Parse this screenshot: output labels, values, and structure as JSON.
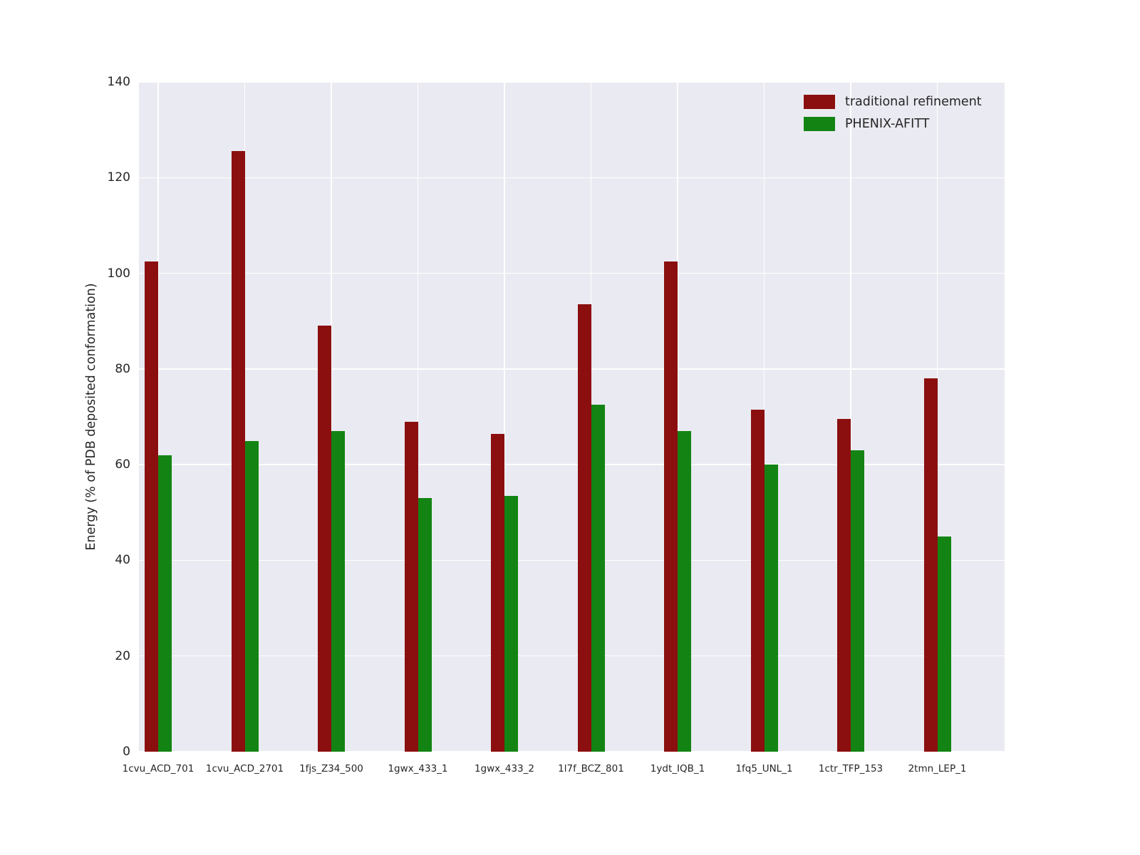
{
  "figure": {
    "background": "#ffffff",
    "plot_background": "#eaeaf2",
    "grid_color": "#ffffff",
    "text_color": "#262626"
  },
  "chart_data": {
    "type": "bar",
    "title": "",
    "xlabel": "",
    "ylabel": "Energy (% of PDB deposited conformation)",
    "ylim": [
      0,
      140
    ],
    "yticks": [
      0,
      20,
      40,
      60,
      80,
      100,
      120,
      140
    ],
    "grid": "on",
    "legend_position": "upper right",
    "categories": [
      "1cvu_ACD_701",
      "1cvu_ACD_2701",
      "1fjs_Z34_500",
      "1gwx_433_1",
      "1gwx_433_2",
      "1l7f_BCZ_801",
      "1ydt_IQB_1",
      "1fq5_UNL_1",
      "1ctr_TFP_153",
      "2tmn_LEP_1"
    ],
    "series": [
      {
        "name": "traditional refinement",
        "color": "#8b0f0f",
        "values": [
          102.5,
          125.5,
          89.0,
          69.0,
          66.5,
          93.5,
          102.5,
          71.5,
          69.5,
          78.0
        ]
      },
      {
        "name": "PHENIX-AFITT",
        "color": "#138413",
        "values": [
          62.0,
          65.0,
          67.0,
          53.0,
          53.5,
          72.5,
          67.0,
          60.0,
          63.0,
          45.0
        ]
      }
    ]
  }
}
